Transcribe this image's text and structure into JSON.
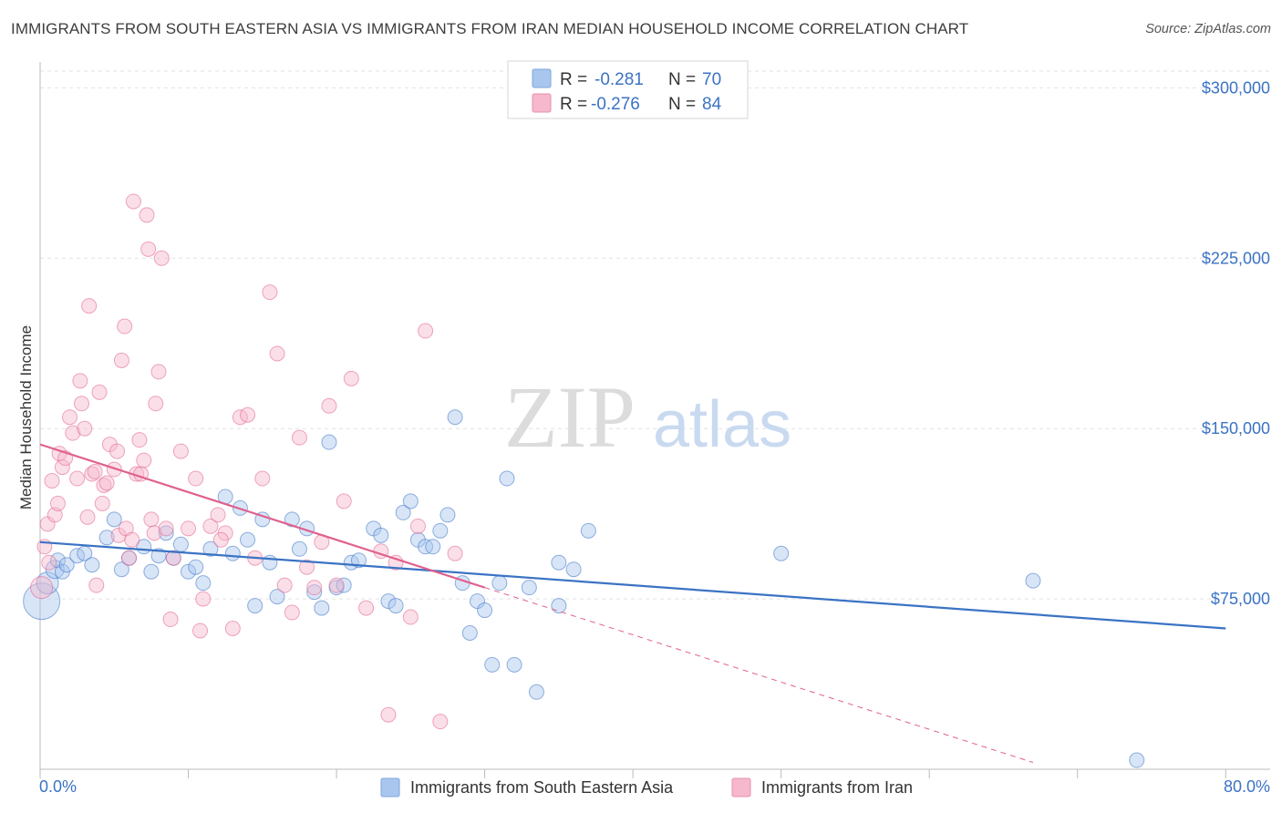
{
  "title": "IMMIGRANTS FROM SOUTH EASTERN ASIA VS IMMIGRANTS FROM IRAN MEDIAN HOUSEHOLD INCOME CORRELATION CHART",
  "source": "Source: ZipAtlas.com",
  "watermark": {
    "zip": "ZIP",
    "atlas": "atlas"
  },
  "colors": {
    "blue": "#3b73c4",
    "blue_fill": "#a9c6ee",
    "pink": "#e0608e",
    "pink_fill": "#f6b8cc",
    "grid": "#e2e2e2"
  },
  "legend": {
    "r_label": "R =",
    "n_label": "N =",
    "entries": [
      {
        "r": "-0.281",
        "n": "70"
      },
      {
        "r": "-0.276",
        "n": "84"
      }
    ]
  },
  "bottom_legend": [
    "Immigrants from South Eastern Asia",
    "Immigrants from Iran"
  ],
  "chart_data": {
    "type": "scatter",
    "title": "IMMIGRANTS FROM SOUTH EASTERN ASIA VS IMMIGRANTS FROM IRAN MEDIAN HOUSEHOLD INCOME CORRELATION CHART",
    "xlabel": "",
    "ylabel": "Median Household Income",
    "xlim": [
      0,
      83
    ],
    "ylim": [
      0,
      315000
    ],
    "x_tick_labels": [
      "0.0%",
      "80.0%"
    ],
    "y_ticks": [
      75000,
      150000,
      225000,
      300000
    ],
    "y_tick_labels": [
      "$75,000",
      "$150,000",
      "$225,000",
      "$300,000"
    ],
    "grid": true,
    "legend_position": "top-center",
    "series": [
      {
        "name": "Immigrants from South Eastern Asia",
        "color": "#3b73c4",
        "r": -0.281,
        "n": 70,
        "trend": {
          "x": [
            0,
            80
          ],
          "y": [
            100000,
            62000
          ]
        },
        "points": [
          [
            0.1,
            74000,
            20
          ],
          [
            0.5,
            82000,
            12
          ],
          [
            1,
            88000,
            10
          ],
          [
            1.2,
            92000,
            8
          ],
          [
            1.5,
            87000,
            8
          ],
          [
            1.8,
            90000,
            8
          ],
          [
            2.5,
            94000,
            8
          ],
          [
            3,
            95000,
            8
          ],
          [
            3.5,
            90000,
            8
          ],
          [
            4.5,
            102000,
            8
          ],
          [
            5,
            110000,
            8
          ],
          [
            5.5,
            88000,
            8
          ],
          [
            6,
            93000,
            8
          ],
          [
            7,
            98000,
            8
          ],
          [
            7.5,
            87000,
            8
          ],
          [
            8,
            94000,
            8
          ],
          [
            8.5,
            104000,
            8
          ],
          [
            9,
            93000,
            8
          ],
          [
            9.5,
            99000,
            8
          ],
          [
            10,
            87000,
            8
          ],
          [
            10.5,
            89000,
            8
          ],
          [
            11,
            82000,
            8
          ],
          [
            11.5,
            97000,
            8
          ],
          [
            12.5,
            120000,
            8
          ],
          [
            13,
            95000,
            8
          ],
          [
            13.5,
            115000,
            8
          ],
          [
            14,
            101000,
            8
          ],
          [
            14.5,
            72000,
            8
          ],
          [
            15,
            110000,
            8
          ],
          [
            15.5,
            91000,
            8
          ],
          [
            16,
            76000,
            8
          ],
          [
            17,
            110000,
            8
          ],
          [
            17.5,
            97000,
            8
          ],
          [
            18,
            106000,
            8
          ],
          [
            18.5,
            78000,
            8
          ],
          [
            19,
            71000,
            8
          ],
          [
            19.5,
            144000,
            8
          ],
          [
            20,
            80000,
            8
          ],
          [
            20.5,
            81000,
            8
          ],
          [
            21,
            91000,
            8
          ],
          [
            21.5,
            92000,
            8
          ],
          [
            22.5,
            106000,
            8
          ],
          [
            23,
            103000,
            8
          ],
          [
            23.5,
            74000,
            8
          ],
          [
            24,
            72000,
            8
          ],
          [
            24.5,
            113000,
            8
          ],
          [
            25,
            118000,
            8
          ],
          [
            25.5,
            101000,
            8
          ],
          [
            26,
            98000,
            8
          ],
          [
            26.5,
            98000,
            8
          ],
          [
            27,
            105000,
            8
          ],
          [
            27.5,
            112000,
            8
          ],
          [
            28,
            155000,
            8
          ],
          [
            28.5,
            82000,
            8
          ],
          [
            29,
            60000,
            8
          ],
          [
            29.5,
            74000,
            8
          ],
          [
            30,
            70000,
            8
          ],
          [
            30.5,
            46000,
            8
          ],
          [
            31,
            82000,
            8
          ],
          [
            31.5,
            128000,
            8
          ],
          [
            32,
            46000,
            8
          ],
          [
            33,
            80000,
            8
          ],
          [
            33.5,
            34000,
            8
          ],
          [
            35,
            91000,
            8
          ],
          [
            35,
            72000,
            8
          ],
          [
            36,
            88000,
            8
          ],
          [
            37,
            105000,
            8
          ],
          [
            50,
            95000,
            8
          ],
          [
            67,
            83000,
            8
          ],
          [
            74,
            4000,
            8
          ]
        ]
      },
      {
        "name": "Immigrants from Iran",
        "color": "#e0608e",
        "r": -0.276,
        "n": 84,
        "trend": {
          "x": [
            0,
            30
          ],
          "y": [
            143000,
            80000
          ]
        },
        "trend_dashed": {
          "x": [
            30,
            67
          ],
          "y": [
            80000,
            3000
          ]
        },
        "points": [
          [
            0.1,
            80000,
            12
          ],
          [
            0.3,
            98000,
            8
          ],
          [
            0.5,
            108000,
            8
          ],
          [
            0.6,
            91000,
            8
          ],
          [
            0.8,
            127000,
            8
          ],
          [
            1,
            112000,
            8
          ],
          [
            1.2,
            117000,
            8
          ],
          [
            1.3,
            139000,
            8
          ],
          [
            1.5,
            133000,
            8
          ],
          [
            1.7,
            137000,
            8
          ],
          [
            2,
            155000,
            8
          ],
          [
            2.2,
            148000,
            8
          ],
          [
            2.5,
            128000,
            8
          ],
          [
            2.7,
            171000,
            8
          ],
          [
            2.8,
            161000,
            8
          ],
          [
            3,
            150000,
            8
          ],
          [
            3.2,
            111000,
            8
          ],
          [
            3.3,
            204000,
            8
          ],
          [
            3.5,
            130000,
            8
          ],
          [
            3.7,
            131000,
            8
          ],
          [
            3.8,
            81000,
            8
          ],
          [
            4,
            166000,
            8
          ],
          [
            4.2,
            117000,
            8
          ],
          [
            4.3,
            125000,
            8
          ],
          [
            4.5,
            126000,
            8
          ],
          [
            4.7,
            143000,
            8
          ],
          [
            5,
            132000,
            8
          ],
          [
            5.2,
            140000,
            8
          ],
          [
            5.3,
            103000,
            8
          ],
          [
            5.5,
            180000,
            8
          ],
          [
            5.7,
            195000,
            8
          ],
          [
            5.8,
            106000,
            8
          ],
          [
            6,
            93000,
            8
          ],
          [
            6.2,
            101000,
            8
          ],
          [
            6.3,
            250000,
            8
          ],
          [
            6.5,
            130000,
            8
          ],
          [
            6.7,
            145000,
            8
          ],
          [
            6.8,
            130000,
            8
          ],
          [
            7,
            136000,
            8
          ],
          [
            7.2,
            244000,
            8
          ],
          [
            7.3,
            229000,
            8
          ],
          [
            7.5,
            110000,
            8
          ],
          [
            7.7,
            104000,
            8
          ],
          [
            7.8,
            161000,
            8
          ],
          [
            8,
            175000,
            8
          ],
          [
            8.2,
            225000,
            8
          ],
          [
            8.5,
            106000,
            8
          ],
          [
            9,
            93000,
            8
          ],
          [
            9.5,
            140000,
            8
          ],
          [
            10,
            106000,
            8
          ],
          [
            10.5,
            128000,
            8
          ],
          [
            10.8,
            61000,
            8
          ],
          [
            11,
            75000,
            8
          ],
          [
            11.5,
            107000,
            8
          ],
          [
            12,
            112000,
            8
          ],
          [
            12.5,
            104000,
            8
          ],
          [
            13,
            62000,
            8
          ],
          [
            13.5,
            155000,
            8
          ],
          [
            14,
            156000,
            8
          ],
          [
            14.5,
            93000,
            8
          ],
          [
            15,
            128000,
            8
          ],
          [
            15.5,
            210000,
            8
          ],
          [
            16,
            183000,
            8
          ],
          [
            16.5,
            81000,
            8
          ],
          [
            17,
            69000,
            8
          ],
          [
            17.5,
            146000,
            8
          ],
          [
            18,
            89000,
            8
          ],
          [
            18.5,
            80000,
            8
          ],
          [
            19,
            100000,
            8
          ],
          [
            19.5,
            160000,
            8
          ],
          [
            20,
            81000,
            8
          ],
          [
            20.5,
            118000,
            8
          ],
          [
            21,
            172000,
            8
          ],
          [
            22,
            71000,
            8
          ],
          [
            23,
            96000,
            8
          ],
          [
            23.5,
            24000,
            8
          ],
          [
            24,
            91000,
            8
          ],
          [
            25,
            67000,
            8
          ],
          [
            25.5,
            107000,
            8
          ],
          [
            26,
            193000,
            8
          ],
          [
            27,
            21000,
            8
          ],
          [
            28,
            95000,
            8
          ],
          [
            8.8,
            66000,
            8
          ],
          [
            12.2,
            101000,
            8
          ]
        ]
      }
    ]
  }
}
